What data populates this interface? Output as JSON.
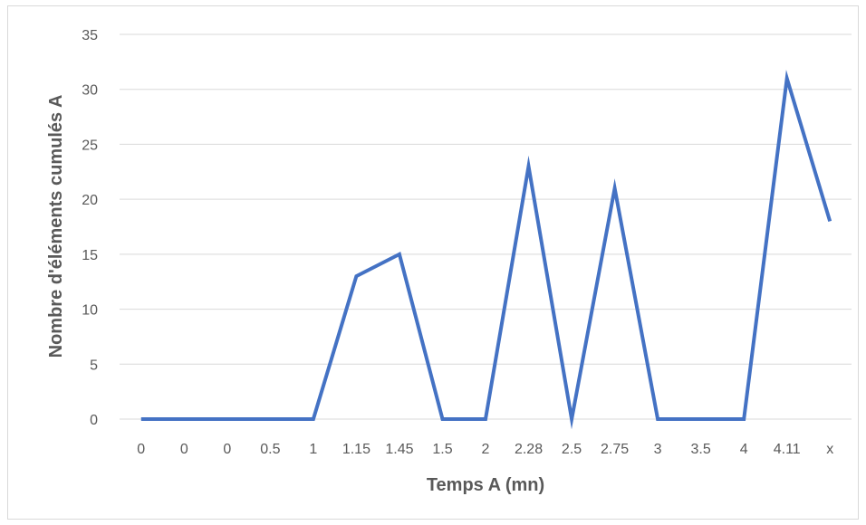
{
  "chart_data": {
    "type": "line",
    "title": "",
    "xlabel": "Temps A (mn)",
    "ylabel": "Nombre d'éléments cumulés A",
    "categories": [
      "0",
      "0",
      "0",
      "0.5",
      "1",
      "1.15",
      "1.45",
      "1.5",
      "2",
      "2.28",
      "2.5",
      "2.75",
      "3",
      "3.5",
      "4",
      "4.11",
      "x"
    ],
    "series": [
      {
        "values": [
          0,
          0,
          0,
          0,
          0,
          13,
          15,
          0,
          0,
          23,
          0,
          21,
          0,
          0,
          0,
          31,
          18
        ]
      }
    ],
    "ylim": [
      0,
      35
    ],
    "yticks": [
      0,
      5,
      10,
      15,
      20,
      25,
      30,
      35
    ],
    "grid": true,
    "legend": "none",
    "colors": {
      "line": "#4472c4",
      "grid": "#d9d9d9",
      "text": "#595959"
    }
  }
}
